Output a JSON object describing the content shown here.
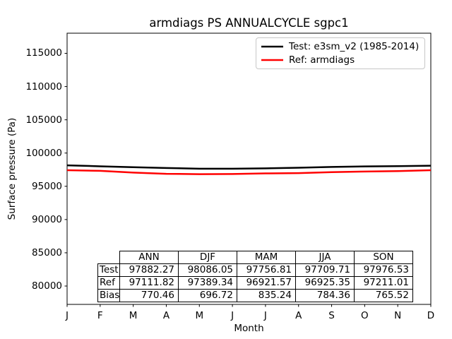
{
  "chart_data": {
    "type": "line",
    "title": "armdiags PS ANNUALCYCLE sgpc1",
    "xlabel": "Month",
    "ylabel": "Surface pressure (Pa)",
    "x_tick_labels": [
      "J",
      "F",
      "M",
      "A",
      "M",
      "J",
      "J",
      "A",
      "S",
      "O",
      "N",
      "D"
    ],
    "y_ticks": [
      80000,
      85000,
      90000,
      95000,
      100000,
      105000,
      110000,
      115000
    ],
    "y_tick_labels": [
      "80000",
      "85000",
      "90000",
      "95000",
      "100000",
      "105000",
      "110000",
      "115000"
    ],
    "ylim": [
      77238,
      118027
    ],
    "grid": false,
    "legend_position": "upper right",
    "series": [
      {
        "name": "Test: e3sm_v2 (1985-2014)",
        "color": "#000000",
        "values": [
          98150,
          98010,
          97870,
          97750,
          97650,
          97640,
          97700,
          97790,
          97910,
          97990,
          98030,
          98100
        ]
      },
      {
        "name": "Ref: armdiags",
        "color": "#ff0000",
        "values": [
          97420,
          97330,
          97060,
          96880,
          96825,
          96850,
          96940,
          96985,
          97130,
          97220,
          97285,
          97420
        ]
      }
    ]
  },
  "legend": {
    "items": [
      {
        "label": "Test: e3sm_v2 (1985-2014)",
        "color": "#000000"
      },
      {
        "label": "Ref: armdiags",
        "color": "#ff0000"
      }
    ]
  },
  "stats_table": {
    "col_headers": [
      "ANN",
      "DJF",
      "MAM",
      "JJA",
      "SON"
    ],
    "rows": [
      {
        "label": "Test",
        "values": [
          "97882.27",
          "98086.05",
          "97756.81",
          "97709.71",
          "97976.53"
        ]
      },
      {
        "label": "Ref",
        "values": [
          "97111.82",
          "97389.34",
          "96921.57",
          "96925.35",
          "97211.01"
        ]
      },
      {
        "label": "Bias",
        "values": [
          "770.46",
          "696.72",
          "835.24",
          "784.36",
          "765.52"
        ]
      }
    ]
  }
}
